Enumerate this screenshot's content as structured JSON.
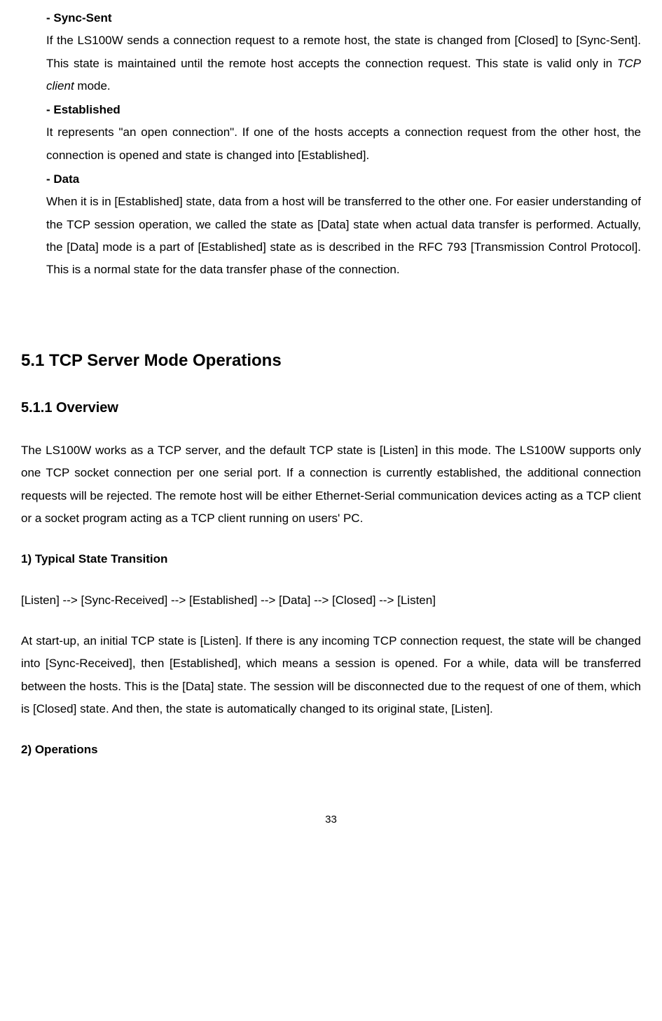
{
  "states": {
    "syncSent": {
      "heading": "- Sync-Sent",
      "text_pre": "If the LS100W sends a connection request to a remote host, the state is changed from [Closed] to [Sync-Sent]. This state is maintained until the remote host accepts the connection request. This state is valid only in ",
      "text_italic": "TCP client",
      "text_post": " mode."
    },
    "established": {
      "heading": "- Established",
      "text": "It represents \"an open connection\". If one of the hosts accepts a connection request from the other host, the connection is opened and state is changed into [Established]."
    },
    "data": {
      "heading": "- Data",
      "text": "When it is in [Established] state, data from a host will be transferred to the other one. For easier understanding of the TCP session operation, we called the state as [Data] state when actual data transfer is performed. Actually, the [Data] mode is a part of [Established] state as is described in the RFC 793 [Transmission Control Protocol]. This is a normal state for the data transfer phase of the connection."
    }
  },
  "section51": {
    "title": "5.1 TCP Server Mode Operations",
    "overview": {
      "title": "5.1.1 Overview",
      "para": "The LS100W works as a TCP server, and the default TCP state is [Listen] in this mode. The LS100W supports only one TCP socket connection per one serial port. If a connection is currently established, the additional connection requests will be rejected. The remote host will be either Ethernet-Serial communication devices acting as a TCP client or a socket program acting as a TCP client running on users' PC."
    },
    "typical": {
      "title": "1) Typical State Transition",
      "chain": "[Listen] --> [Sync-Received] --> [Established] --> [Data] --> [Closed] --> [Listen]",
      "para": "At start-up, an initial TCP state is [Listen]. If there is any incoming TCP connection request, the state will be changed into [Sync-Received], then [Established], which means a session is opened. For a while, data will be transferred between the hosts. This is the [Data] state. The session will be disconnected due to the request of one of them, which is [Closed] state. And then, the state is automatically changed to its original state, [Listen]."
    },
    "operations": {
      "title": "2) Operations"
    }
  },
  "pageNumber": "33",
  "typography": {
    "body_fontsize": 17,
    "h2_fontsize": 24,
    "h3_fontsize": 20,
    "line_height": 1.9,
    "text_color": "#000000",
    "background_color": "#ffffff"
  }
}
